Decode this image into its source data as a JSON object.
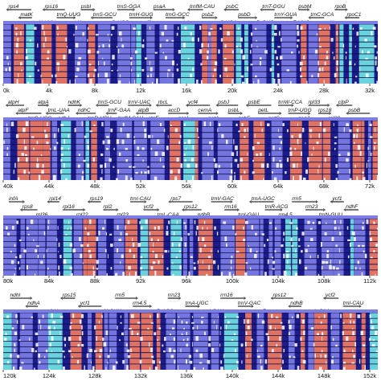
{
  "figure": {
    "colors": {
      "exon": "#7d7de6",
      "intron_rna": "#6fe3e3",
      "noncoding": "#f07a5f",
      "track_bg": "#1b1b8a",
      "divergence": "#ffffff",
      "arrow": "#555555"
    },
    "panels": [
      {
        "genes": [
          "rps4",
          "matK",
          "trnK-UUU",
          "rps16",
          "trnQ-UUG",
          "psbK",
          "psbI",
          "trnS-GCU",
          "trnG-UCC",
          "trnS-GGA",
          "trnH-GUG",
          "ycf3",
          "psaA",
          "trnG-GCC",
          "psbA",
          "trnfM-CAU",
          "psbZ",
          "trnS-UGA",
          "psbC",
          "psbD",
          "trnD-GUC",
          "trnT-GGU",
          "trnY-GUA",
          "trnE-UUC",
          "psbM",
          "trnC-GCA",
          "petN",
          "rpoB",
          "rpoC1"
        ],
        "ticks": [
          "0k",
          "4k",
          "8k",
          "12k",
          "16k",
          "20k",
          "24k",
          "28k",
          "32k"
        ],
        "tracks": 10
      },
      {
        "genes": [
          "atpH",
          "atpF",
          "trnG-UCC",
          "atpA",
          "trnL-UAA",
          "ndhJ",
          "ndhK",
          "ndhC",
          "trnR-UCU",
          "trnS-GCU",
          "trnF-GAA",
          "trnfM-CAU",
          "trnV-UAC",
          "atpB",
          "atpE",
          "rbcL",
          "accD",
          "psaI",
          "ycf4",
          "cemA",
          "petA",
          "psbJ",
          "psbL",
          "psbF",
          "psbE",
          "petL",
          "petG",
          "trnW-CCA",
          "trnP-UGG",
          "psaJ",
          "rpl33",
          "rps18",
          "rpl20",
          "clpP",
          "psbB"
        ],
        "ticks": [
          "40k",
          "44k",
          "48k",
          "52k",
          "56k",
          "60k",
          "64k",
          "68k",
          "72k"
        ],
        "tracks": 10
      },
      {
        "genes": [
          "infA",
          "rps8",
          "rpl36",
          "rpl14",
          "rpl16",
          "rpl22",
          "rps19",
          "rpl2",
          "rpl23",
          "trnI-CAU",
          "ycf2",
          "trnL-CAA",
          "rps7",
          "rps12",
          "ndhB",
          "trnV-GAC",
          "rrn16",
          "trnI-GAU",
          "trnA-UGC",
          "trnR-ACG",
          "rrn4.5",
          "rrn5",
          "rrn23",
          "trnN-GUU",
          "ycf1",
          "ndhF"
        ],
        "ticks": [
          "80k",
          "84k",
          "88k",
          "92k",
          "96k",
          "100k",
          "104k",
          "108k",
          "112k"
        ],
        "tracks": 10
      },
      {
        "genes": [
          "ndhI",
          "ndhA",
          "ndhH",
          "rps15",
          "ycf1",
          "trnN-GUU",
          "rrn5",
          "rrn4.5",
          "trnR-ACG",
          "rrn23",
          "trnA-UGC",
          "trnI-GAU",
          "rrn16",
          "trnV-GAC",
          "rps7",
          "rps12",
          "ndhB",
          "trnL-CAA",
          "ycf2",
          "trnI-CAU"
        ],
        "ticks": [
          "120k",
          "124k",
          "128k",
          "132k",
          "136k",
          "140k",
          "144k",
          "148k",
          "152k"
        ],
        "tracks": 10
      }
    ]
  }
}
